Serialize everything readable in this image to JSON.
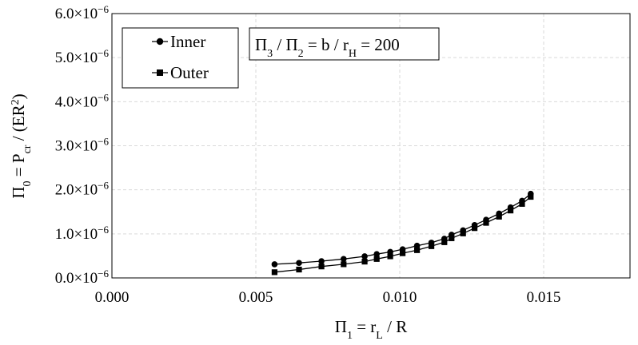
{
  "chart_data": {
    "type": "line",
    "x": [
      0.00565,
      0.0065,
      0.00728,
      0.00805,
      0.00878,
      0.0092,
      0.00967,
      0.0101,
      0.0106,
      0.0111,
      0.01155,
      0.0118,
      0.0122,
      0.0126,
      0.013,
      0.01345,
      0.01385,
      0.01425,
      0.01455
    ],
    "series": [
      {
        "name": "Inner",
        "marker": "circle",
        "values": [
          3.1e-07,
          3.4e-07,
          3.8e-07,
          4.3e-07,
          4.9e-07,
          5.4e-07,
          5.9e-07,
          6.5e-07,
          7.3e-07,
          8e-07,
          8.9e-07,
          9.8e-07,
          1.08e-06,
          1.2e-06,
          1.32e-06,
          1.46e-06,
          1.6e-06,
          1.75e-06,
          1.91e-06
        ]
      },
      {
        "name": "Outer",
        "marker": "square",
        "values": [
          1.3e-07,
          1.9e-07,
          2.6e-07,
          3.1e-07,
          3.7e-07,
          4.3e-07,
          4.9e-07,
          5.6e-07,
          6.3e-07,
          7.2e-07,
          8.1e-07,
          9e-07,
          1.01e-06,
          1.13e-06,
          1.25e-06,
          1.39e-06,
          1.53e-06,
          1.68e-06,
          1.84e-06
        ]
      }
    ],
    "xlabel": {
      "main": "Π",
      "sub1": "1",
      "mid": " = r",
      "sub2": "L",
      "tail": " / R"
    },
    "ylabel": {
      "main": "Π",
      "sub1": "0",
      "mid": " = P",
      "sub2": "cr",
      "mid2": " / (ER",
      "sup": "2",
      "tail": ")"
    },
    "annotation": {
      "a": "Π",
      "s1": "3",
      "b": " / Π",
      "s2": "2",
      "c": " = b / r",
      "s3": "H",
      "d": " = 200"
    },
    "xlim": [
      0,
      0.018
    ],
    "ylim": [
      0,
      6e-06
    ],
    "xticks": [
      0,
      0.005,
      0.01,
      0.015
    ],
    "xtick_labels": [
      "0.000",
      "0.005",
      "0.010",
      "0.015"
    ],
    "yticks": [
      0,
      1e-06,
      2e-06,
      3e-06,
      4e-06,
      5e-06,
      6e-06
    ],
    "ytick_labels": [
      "0.0×10",
      "1.0×10",
      "2.0×10",
      "3.0×10",
      "4.0×10",
      "5.0×10",
      "6.0×10"
    ],
    "ytick_exponent": "−6",
    "grid": true,
    "legend_position": "top-left",
    "line_color": "#000000",
    "grid_color": "#d9d9d9"
  }
}
